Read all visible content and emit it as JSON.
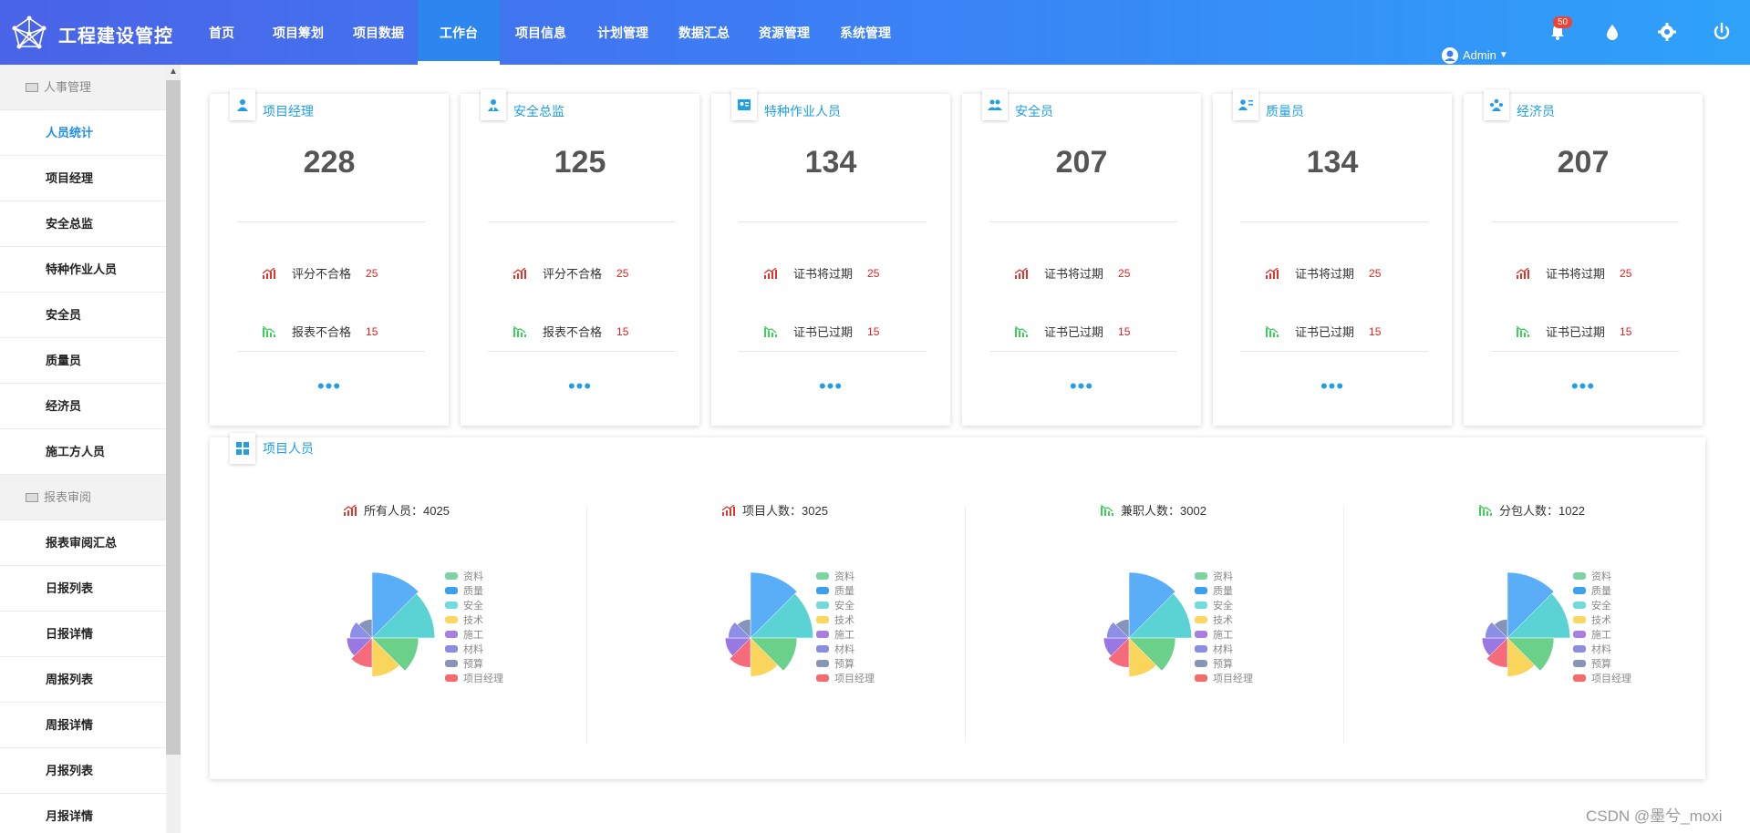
{
  "app": {
    "title": "工程建设管控"
  },
  "nav": [
    {
      "label": "首页",
      "w": 0
    },
    {
      "label": "项目筹划"
    },
    {
      "label": "项目数据"
    },
    {
      "label": "工作台",
      "active": true
    },
    {
      "label": "项目信息"
    },
    {
      "label": "计划管理"
    },
    {
      "label": "数据汇总"
    },
    {
      "label": "资源管理"
    },
    {
      "label": "系统管理"
    }
  ],
  "header": {
    "user": "Admin",
    "bell_count": "50"
  },
  "sidebar": {
    "groups": [
      {
        "label": "人事管理",
        "items": [
          "人员统计",
          "项目经理",
          "安全总监",
          "特种作业人员",
          "安全员",
          "质量员",
          "经济员",
          "施工方人员"
        ]
      },
      {
        "label": "报表审阅",
        "items": [
          "报表审阅汇总",
          "日报列表",
          "日报详情",
          "周报列表",
          "周报详情",
          "月报列表",
          "月报详情"
        ]
      }
    ],
    "active": "人员统计"
  },
  "cards": [
    {
      "title": "项目经理",
      "value": "228",
      "row1_label": "评分不合格",
      "row1_value": "25",
      "row2_label": "报表不合格",
      "row2_value": "15"
    },
    {
      "title": "安全总监",
      "value": "125",
      "row1_label": "评分不合格",
      "row1_value": "25",
      "row2_label": "报表不合格",
      "row2_value": "15"
    },
    {
      "title": "特种作业人员",
      "value": "134",
      "row1_label": "证书将过期",
      "row1_value": "25",
      "row2_label": "证书已过期",
      "row2_value": "15"
    },
    {
      "title": "安全员",
      "value": "207",
      "row1_label": "证书将过期",
      "row1_value": "25",
      "row2_label": "证书已过期",
      "row2_value": "15"
    },
    {
      "title": "质量员",
      "value": "134",
      "row1_label": "证书将过期",
      "row1_value": "25",
      "row2_label": "证书已过期",
      "row2_value": "15"
    },
    {
      "title": "经济员",
      "value": "207",
      "row1_label": "证书将过期",
      "row1_value": "25",
      "row2_label": "证书已过期",
      "row2_value": "15"
    }
  ],
  "card_more": "•••",
  "panel": {
    "title": "项目人员"
  },
  "pies": [
    {
      "title": "所有人员：4025",
      "trend": "up"
    },
    {
      "title": "项目人数：3025",
      "trend": "up"
    },
    {
      "title": "兼职人数：3002",
      "trend": "down"
    },
    {
      "title": "分包人数：1022",
      "trend": "down"
    }
  ],
  "legend": [
    {
      "label": "资料",
      "color": "#7ed3a2"
    },
    {
      "label": "质量",
      "color": "#3aa0ef"
    },
    {
      "label": "安全",
      "color": "#74dbdb"
    },
    {
      "label": "技术",
      "color": "#fad860"
    },
    {
      "label": "施工",
      "color": "#a77fe0"
    },
    {
      "label": "材料",
      "color": "#8b8ee0"
    },
    {
      "label": "预算",
      "color": "#8995b6"
    },
    {
      "label": "项目经理",
      "color": "#f56b6b"
    }
  ],
  "rose_slices": [
    {
      "name": "质量",
      "value": 100,
      "color": "#5aaef7"
    },
    {
      "name": "安全",
      "value": 95,
      "color": "#5bd2d3"
    },
    {
      "name": "资料",
      "value": 68,
      "color": "#6bd08a"
    },
    {
      "name": "技术",
      "value": 55,
      "color": "#fad55b"
    },
    {
      "name": "项目经理",
      "value": 40,
      "color": "#f56b7c"
    },
    {
      "name": "施工",
      "value": 33,
      "color": "#9a78e4"
    },
    {
      "name": "材料",
      "value": 28,
      "color": "#8d8ee6"
    },
    {
      "name": "预算",
      "value": 22,
      "color": "#8494ba"
    }
  ],
  "watermark": "CSDN @墨兮_moxi"
}
